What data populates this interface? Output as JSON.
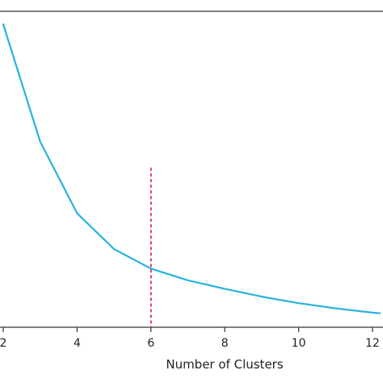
{
  "chart_data": {
    "type": "line",
    "title": "",
    "xlabel": "Number of Clusters",
    "ylabel": "",
    "xlim": [
      2,
      12.2
    ],
    "ylim": [
      0.03,
      1.0
    ],
    "x_ticks": [
      2,
      4,
      6,
      8,
      10,
      12
    ],
    "x_tick_labels": [
      "2",
      "4",
      "6",
      "8",
      "10",
      "12"
    ],
    "grid": false,
    "series": [
      {
        "color": "#29b2de",
        "x": [
          2,
          3,
          4,
          5,
          6,
          7,
          8,
          9,
          10,
          11,
          12,
          12.2
        ],
        "y": [
          0.96,
          0.6,
          0.38,
          0.27,
          0.21,
          0.174,
          0.148,
          0.124,
          0.104,
          0.088,
          0.075,
          0.073
        ]
      }
    ],
    "annotations": [
      {
        "type": "vline",
        "x": 6,
        "y_range": [
          0.21,
          0.52
        ],
        "color": "#d6246e",
        "style": "dashed"
      }
    ]
  }
}
